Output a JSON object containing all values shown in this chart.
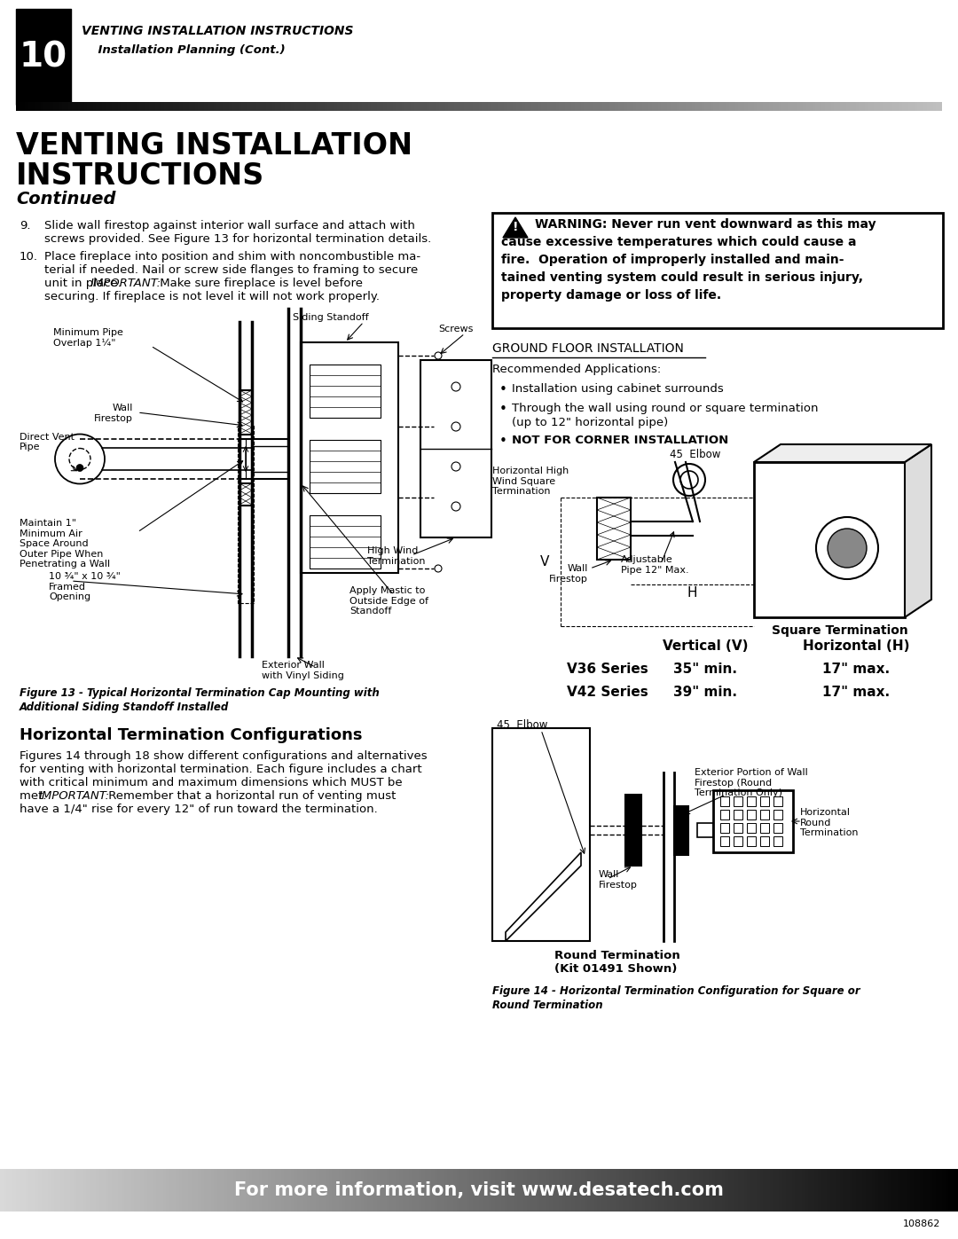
{
  "page_num": "10",
  "header_title": "VENTING INSTALLATION INSTRUCTIONS",
  "header_subtitle": "    Installation Planning (Cont.)",
  "main_title_line1": "VENTING INSTALLATION",
  "main_title_line2": "INSTRUCTIONS",
  "main_subtitle": "Continued",
  "body_text_9": "Slide wall firestop against interior wall surface and attach with\nscrews provided. See Figure 13 for horizontal termination details.",
  "body_text_10_a": "Place fireplace into position and shim with noncombustible ma-",
  "body_text_10_b": "terial if needed. Nail or screw side flanges to framing to secure",
  "body_text_10_c": "unit in place. ",
  "body_text_10_italic": "IMPORTANT:",
  "body_text_10_d": " Make sure fireplace is level before",
  "body_text_10_e": "securing. If fireplace is not level it will not work properly.",
  "figure13_caption_a": "Figure 13 - Typical Horizontal Termination Cap Mounting with",
  "figure13_caption_b": "Additional Siding Standoff Installed",
  "section_title": "Horizontal Termination Configurations",
  "section_body_a": "Figures 14 through 18 show different configurations and alternatives",
  "section_body_b": "for venting with horizontal termination. Each figure includes a chart",
  "section_body_c": "with critical minimum and maximum dimensions which MUST be",
  "section_body_d": "met. ",
  "section_body_italic": "IMPORTANT:",
  "section_body_e": " Remember that a horizontal run of venting must",
  "section_body_f": "have a 1/4\" rise for every 12\" of run toward the termination.",
  "warn_line1": "WARNING: Never run vent downward as this may",
  "warn_line2": "cause excessive temperatures which could cause a",
  "warn_line3": "fire.  Operation of improperly installed and main-",
  "warn_line4": "tained venting system could result in serious injury,",
  "warn_line5": "property damage or loss of life.",
  "ground_floor_title": "GROUND FLOOR INSTALLATION",
  "recommended_title": "Recommended Applications:",
  "bullet1": "Installation using cabinet surrounds",
  "bullet2": "Through the wall using round or square termination",
  "bullet2b": "(up to 12\" horizontal pipe)",
  "bullet3": "NOT FOR CORNER INSTALLATION",
  "elbow_label_top": "45  Elbow",
  "horiz_high_wind_label": "Horizontal High\nWind Square\nTermination",
  "adjustable_pipe_label": "Adjustable\nPipe 12\" Max.",
  "wall_firestop_label_top": "Wall\nFirestop",
  "square_term_label": "Square Termination",
  "H_label": "H",
  "V_label": "V",
  "table_header1": "Vertical (V)",
  "table_header2": "Horizontal (H)",
  "table_row1_label": "V36 Series",
  "table_row1_v": "35\" min.",
  "table_row1_h": "17\" max.",
  "table_row2_label": "V42 Series",
  "table_row2_v": "39\" min.",
  "table_row2_h": "17\" max.",
  "elbow_label_bot": "45  Elbow",
  "wall_firestop_label_bot": "Wall\nFirestop",
  "ext_wall_firestop_label": "Exterior Portion of Wall\nFirestop (Round\nTermination Only)",
  "horiz_round_label": "Horizontal\nRound\nTermination",
  "round_term_caption": "Round Termination\n(Kit 01491 Shown)",
  "figure14_caption_a": "Figure 14 - Horizontal Termination Configuration for Square or",
  "figure14_caption_b": "Round Termination",
  "footer_text": "For more information, visit www.desatech.com",
  "doc_number": "108862",
  "bg_color": "#ffffff"
}
